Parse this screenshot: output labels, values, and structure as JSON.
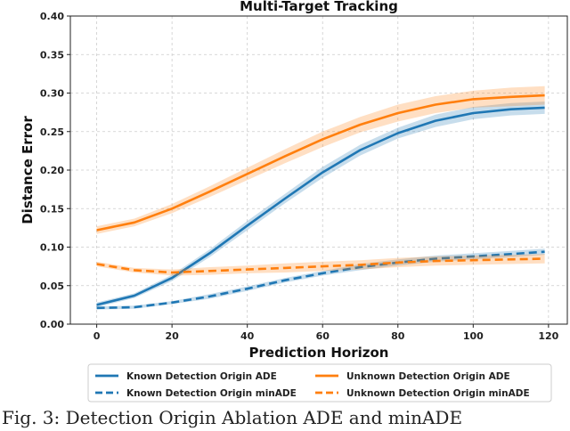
{
  "chart_data": {
    "type": "line",
    "title": "Multi-Target Tracking",
    "xlabel": "Prediction Horizon",
    "ylabel": "Distance Error",
    "xlim": [
      -7,
      125
    ],
    "ylim": [
      0,
      0.4
    ],
    "xticks": [
      "0",
      "20",
      "40",
      "60",
      "80",
      "100",
      "120"
    ],
    "yticks": [
      "0.00",
      "0.05",
      "0.10",
      "0.15",
      "0.20",
      "0.25",
      "0.30",
      "0.35",
      "0.40"
    ],
    "grid": true,
    "legend_position": "below",
    "series": [
      {
        "name": "Known Detection Origin ADE",
        "color": "#1f77b4",
        "style": "solid",
        "x": [
          0,
          10,
          20,
          30,
          40,
          50,
          60,
          70,
          80,
          90,
          100,
          110,
          119
        ],
        "values": [
          0.025,
          0.037,
          0.06,
          0.092,
          0.128,
          0.163,
          0.197,
          0.226,
          0.248,
          0.264,
          0.274,
          0.279,
          0.281
        ],
        "band": [
          0.003,
          0.003,
          0.004,
          0.005,
          0.006,
          0.006,
          0.007,
          0.007,
          0.007,
          0.008,
          0.008,
          0.008,
          0.008
        ]
      },
      {
        "name": "Unknown Detection Origin ADE",
        "color": "#ff7f0e",
        "style": "solid",
        "x": [
          0,
          10,
          20,
          30,
          40,
          50,
          60,
          70,
          80,
          90,
          100,
          110,
          119
        ],
        "values": [
          0.122,
          0.132,
          0.15,
          0.172,
          0.195,
          0.218,
          0.24,
          0.259,
          0.274,
          0.285,
          0.292,
          0.295,
          0.297
        ],
        "band": [
          0.005,
          0.005,
          0.006,
          0.007,
          0.008,
          0.009,
          0.01,
          0.01,
          0.011,
          0.011,
          0.011,
          0.012,
          0.012
        ]
      },
      {
        "name": "Known Detection Origin minADE",
        "color": "#1f77b4",
        "style": "dashed",
        "x": [
          0,
          10,
          20,
          30,
          40,
          50,
          60,
          70,
          80,
          90,
          100,
          110,
          119
        ],
        "values": [
          0.021,
          0.022,
          0.028,
          0.036,
          0.046,
          0.057,
          0.066,
          0.074,
          0.08,
          0.085,
          0.088,
          0.091,
          0.094
        ],
        "band": [
          0.002,
          0.002,
          0.002,
          0.003,
          0.003,
          0.003,
          0.003,
          0.004,
          0.004,
          0.004,
          0.004,
          0.004,
          0.004
        ]
      },
      {
        "name": "Unknown Detection Origin minADE",
        "color": "#ff7f0e",
        "style": "dashed",
        "x": [
          0,
          10,
          20,
          30,
          40,
          50,
          60,
          70,
          80,
          90,
          100,
          110,
          119
        ],
        "values": [
          0.078,
          0.07,
          0.067,
          0.069,
          0.071,
          0.073,
          0.075,
          0.077,
          0.08,
          0.082,
          0.083,
          0.084,
          0.085
        ],
        "band": [
          0.003,
          0.003,
          0.004,
          0.005,
          0.005,
          0.006,
          0.006,
          0.006,
          0.006,
          0.006,
          0.006,
          0.006,
          0.006
        ]
      }
    ]
  },
  "caption": "Fig. 3: Detection Origin Ablation ADE and minADE"
}
